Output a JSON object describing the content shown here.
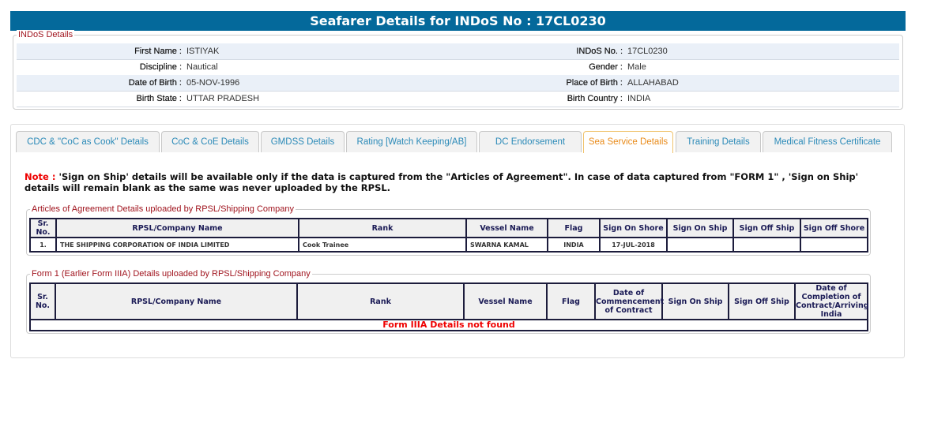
{
  "title": "Seafarer Details for INDoS No : 17CL0230",
  "indos": {
    "legend": "INDoS Details",
    "rows": [
      {
        "l1": "First Name :",
        "v1": "ISTIYAK",
        "l2": "INDoS No. :",
        "v2": "17CL0230"
      },
      {
        "l1": "Discipline :",
        "v1": "Nautical",
        "l2": "Gender :",
        "v2": "Male"
      },
      {
        "l1": "Date of Birth :",
        "v1": "05-NOV-1996",
        "l2": "Place of Birth :",
        "v2": "ALLAHABAD"
      },
      {
        "l1": "Birth State :",
        "v1": "UTTAR PRADESH",
        "l2": "Birth Country :",
        "v2": "INDIA"
      }
    ]
  },
  "tabs": [
    "CDC & \"CoC as Cook\" Details",
    "CoC & CoE Details",
    "GMDSS Details",
    "Rating [Watch Keeping/AB]",
    "DC Endorsement",
    "Sea Service Details",
    "Training Details",
    "Medical Fitness Certificate"
  ],
  "active_tab": "Sea Service Details",
  "note": {
    "label": "Note :",
    "text": " 'Sign on Ship' details will be available only if the data is captured from the \"Articles of Agreement\". In case of data captured from \"FORM 1\" , 'Sign on Ship' details will remain blank as the same was never uploaded by the RPSL."
  },
  "articles": {
    "legend": "Articles of Agreement Details uploaded by RPSL/Shipping Company",
    "headers": [
      "Sr. No.",
      "RPSL/Company Name",
      "Rank",
      "Vessel Name",
      "Flag",
      "Sign On Shore",
      "Sign On Ship",
      "Sign Off Ship",
      "Sign Off Shore"
    ],
    "rows": [
      [
        "1.",
        "THE SHIPPING CORPORATION OF INDIA LIMITED",
        "Cook Trainee",
        "SWARNA KAMAL",
        "INDIA",
        "17-JUL-2018",
        "",
        "",
        ""
      ]
    ]
  },
  "form1": {
    "legend": "Form 1 (Earlier Form IIIA) Details uploaded by RPSL/Shipping Company",
    "headers": [
      "Sr. No.",
      "RPSL/Company Name",
      "Rank",
      "Vessel Name",
      "Flag",
      "Date of Commencement of Contract",
      "Sign On Ship",
      "Sign Off Ship",
      "Date of Completion of Contract/Arriving India"
    ],
    "empty": "Form IIIA Details not found"
  },
  "colors": {
    "header": "#04699b",
    "legend": "#a0141e",
    "tab_text": "#2b8ab8",
    "active_tab": "#e98b1a",
    "note": "#e00000"
  }
}
